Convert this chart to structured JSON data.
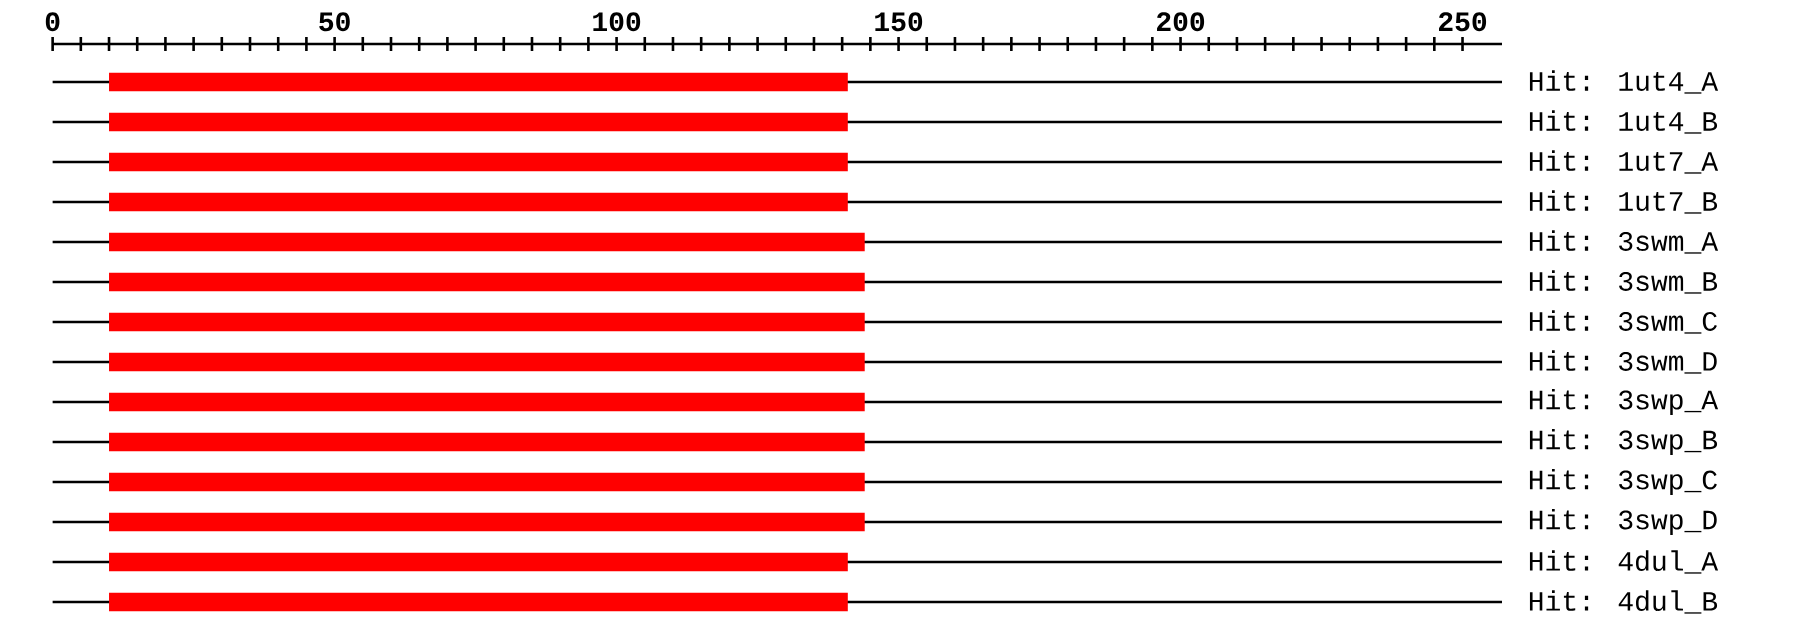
{
  "chart_data": {
    "type": "bar",
    "orientation": "horizontal",
    "categories": [
      "Hit: 1ut4_A",
      "Hit: 1ut4_B",
      "Hit: 1ut7_A",
      "Hit: 1ut7_B",
      "Hit: 3swm_A",
      "Hit: 3swm_B",
      "Hit: 3swm_C",
      "Hit: 3swm_D",
      "Hit: 3swp_A",
      "Hit: 3swp_B",
      "Hit: 3swp_C",
      "Hit: 3swp_D",
      "Hit: 4dul_A",
      "Hit: 4dul_B"
    ],
    "base": [
      10,
      10,
      10,
      10,
      10,
      10,
      10,
      10,
      10,
      10,
      10,
      10,
      10,
      10
    ],
    "values": [
      131,
      131,
      131,
      131,
      134,
      134,
      134,
      134,
      134,
      134,
      134,
      134,
      131,
      131
    ],
    "color": "#ff0000",
    "xlim": [
      0,
      257
    ],
    "xticks": [
      0,
      {
        "value": 5,
        "label": null
      },
      {
        "value": 10,
        "label": null
      },
      {
        "value": 15,
        "label": null
      },
      {
        "value": 20,
        "label": null
      },
      {
        "value": 25,
        "label": null
      },
      {
        "value": 30,
        "label": null
      },
      {
        "value": 35,
        "label": null
      },
      {
        "value": 40,
        "label": null
      },
      {
        "value": 45,
        "label": null
      },
      50,
      {
        "value": 55,
        "label": null
      },
      {
        "value": 60,
        "label": null
      },
      {
        "value": 65,
        "label": null
      },
      {
        "value": 70,
        "label": null
      },
      {
        "value": 75,
        "label": null
      },
      {
        "value": 80,
        "label": null
      },
      {
        "value": 85,
        "label": null
      },
      {
        "value": 90,
        "label": null
      },
      {
        "value": 95,
        "label": null
      },
      100,
      {
        "value": 105,
        "label": null
      },
      {
        "value": 110,
        "label": null
      },
      {
        "value": 115,
        "label": null
      },
      {
        "value": 120,
        "label": null
      },
      {
        "value": 125,
        "label": null
      },
      {
        "value": 130,
        "label": null
      },
      {
        "value": 135,
        "label": null
      },
      {
        "value": 140,
        "label": null
      },
      {
        "value": 145,
        "label": null
      },
      150,
      {
        "value": 155,
        "label": null
      },
      {
        "value": 160,
        "label": null
      },
      {
        "value": 165,
        "label": null
      },
      {
        "value": 170,
        "label": null
      },
      {
        "value": 175,
        "label": null
      },
      {
        "value": 180,
        "label": null
      },
      {
        "value": 185,
        "label": null
      },
      {
        "value": 190,
        "label": null
      },
      {
        "value": 195,
        "label": null
      },
      200,
      {
        "value": 205,
        "label": null
      },
      {
        "value": 210,
        "label": null
      },
      {
        "value": 215,
        "label": null
      },
      {
        "value": 220,
        "label": null
      },
      {
        "value": 225,
        "label": null
      },
      {
        "value": 230,
        "label": null
      },
      {
        "value": 235,
        "label": null
      },
      {
        "value": 240,
        "label": null
      },
      {
        "value": 245,
        "label": null
      },
      250
    ],
    "grid": "y"
  }
}
